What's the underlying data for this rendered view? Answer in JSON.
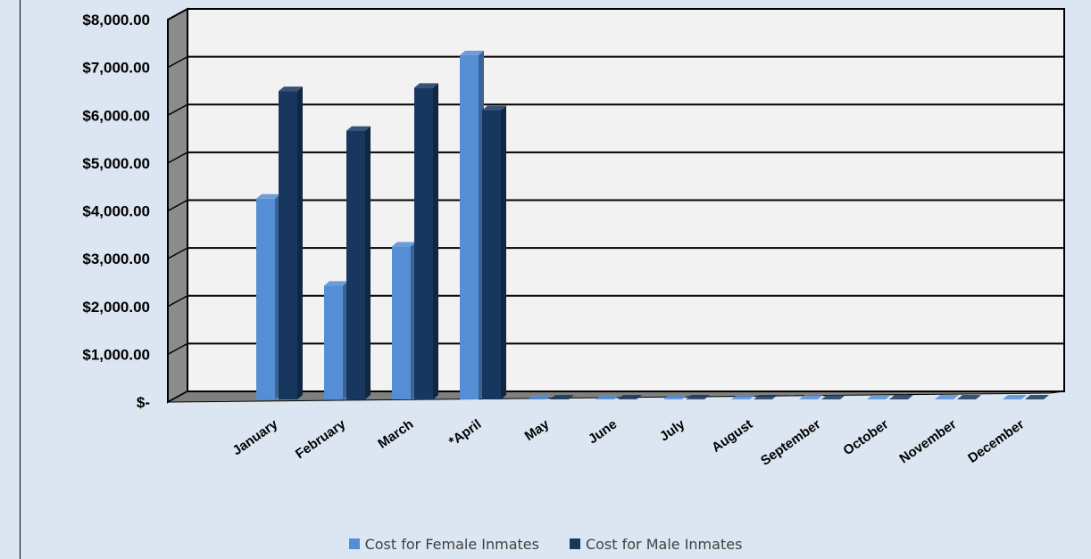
{
  "chart_data": {
    "type": "bar",
    "title": "",
    "xlabel": "",
    "ylabel": "",
    "ylim": [
      0,
      8000
    ],
    "yticks": [
      "$-",
      "$1,000.00",
      "$2,000.00",
      "$3,000.00",
      "$4,000.00",
      "$5,000.00",
      "$6,000.00",
      "$7,000.00",
      "$8,000.00"
    ],
    "categories": [
      "January",
      "February",
      "March",
      "*April",
      "May",
      "June",
      "July",
      "August",
      "September",
      "October",
      "November",
      "December"
    ],
    "series": [
      {
        "name": "Cost for Female Inmates",
        "color": "#558ed5",
        "values": [
          4200,
          2380,
          3200,
          7200,
          0,
          0,
          0,
          0,
          0,
          0,
          0,
          0
        ]
      },
      {
        "name": "Cost for Male Inmates",
        "color": "#17375e",
        "values": [
          6450,
          5620,
          6520,
          6050,
          0,
          0,
          0,
          0,
          0,
          0,
          0,
          0
        ]
      }
    ],
    "grid": true,
    "legend": "bottom"
  }
}
